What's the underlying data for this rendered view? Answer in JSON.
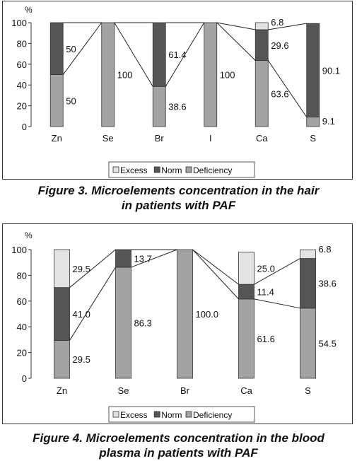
{
  "colors": {
    "excess": "#e3e3e3",
    "norm": "#555555",
    "deficiency": "#a3a3a3",
    "border": "#333333",
    "line": "#222222"
  },
  "chart_data": [
    {
      "type": "bar",
      "stacked": true,
      "title": "Figure 3. Microelements concentration in the hair in patients with PAF",
      "title_lines": [
        "Figure 3. Microelements concentration in the hair",
        "in patients with PAF"
      ],
      "ylabel": "%",
      "ylim": [
        0,
        100
      ],
      "yticks": [
        0,
        20,
        40,
        60,
        80,
        100
      ],
      "categories": [
        "Zn",
        "Se",
        "Br",
        "I",
        "Ca",
        "S"
      ],
      "series": [
        {
          "name": "Deficiency",
          "key": "deficiency",
          "values": [
            50,
            100,
            38.6,
            100,
            63.6,
            9.1
          ],
          "labels": [
            "50",
            "100",
            "38.6",
            "100",
            "63.6",
            "9.1"
          ]
        },
        {
          "name": "Norm",
          "key": "norm",
          "values": [
            50,
            0,
            61.4,
            0,
            29.6,
            90.1
          ],
          "labels": [
            "50",
            "",
            "61.4",
            "",
            "29.6",
            "90.1"
          ]
        },
        {
          "name": "Excess",
          "key": "excess",
          "values": [
            0,
            0,
            0,
            0,
            6.8,
            0
          ],
          "labels": [
            "",
            "",
            "",
            "",
            "6.8",
            ""
          ]
        }
      ],
      "legend": {
        "placement": "bottom-center",
        "items": [
          "Excess",
          "Norm",
          "Deficiency"
        ]
      },
      "series_lines": true,
      "grid": false
    },
    {
      "type": "bar",
      "stacked": true,
      "title": "Figure 4. Microelements concentration in the blood plasma in patients with PAF",
      "title_lines": [
        "Figure 4. Microelements concentration in the blood",
        "plasma in patients with PAF"
      ],
      "ylabel": "%",
      "ylim": [
        0,
        100
      ],
      "yticks": [
        0,
        20,
        40,
        60,
        80,
        100
      ],
      "categories": [
        "Zn",
        "Se",
        "Br",
        "Ca",
        "S"
      ],
      "series": [
        {
          "name": "Deficiency",
          "key": "deficiency",
          "values": [
            29.5,
            86.3,
            100,
            61.6,
            54.5
          ],
          "labels": [
            "29.5",
            "86.3",
            "100.0",
            "61.6",
            "54.5"
          ]
        },
        {
          "name": "Norm",
          "key": "norm",
          "values": [
            41.0,
            13.7,
            0,
            11.4,
            38.6
          ],
          "labels": [
            "41.0",
            "13.7",
            "",
            "11.4",
            "38.6"
          ]
        },
        {
          "name": "Excess",
          "key": "excess",
          "values": [
            29.5,
            0,
            0,
            25.0,
            6.8
          ],
          "labels": [
            "29.5",
            "",
            "",
            "25.0",
            "6.8"
          ]
        }
      ],
      "legend": {
        "placement": "bottom-center",
        "items": [
          "Excess",
          "Norm",
          "Deficiency"
        ]
      },
      "series_lines": true,
      "grid": false
    }
  ]
}
